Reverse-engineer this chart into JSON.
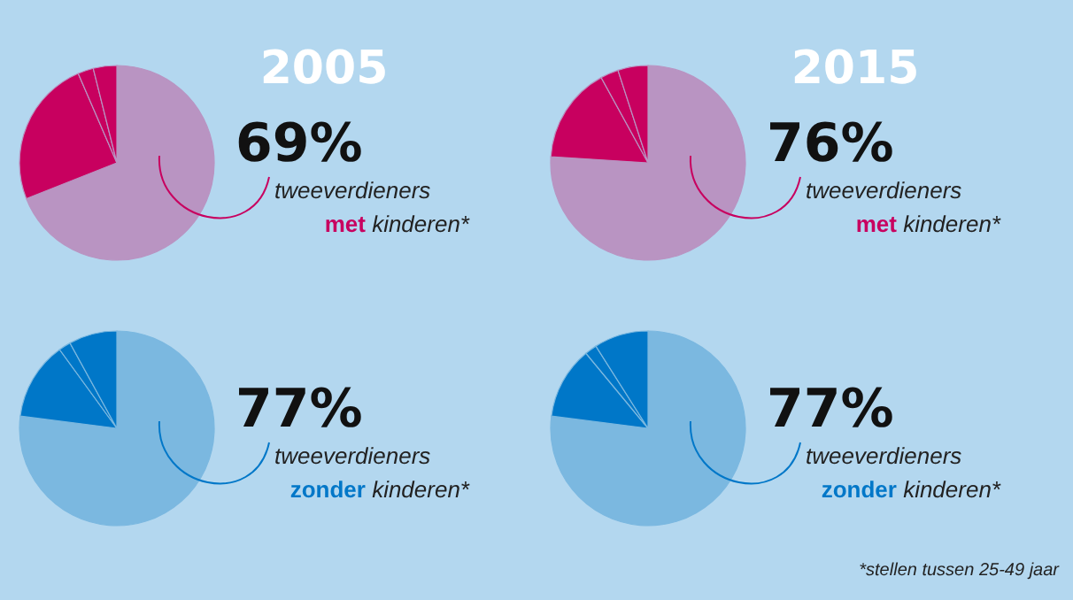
{
  "chart_data": [
    {
      "type": "pie",
      "title": "2005",
      "categories": [
        null,
        null,
        null,
        null
      ],
      "values": [
        69,
        24.5,
        2.6,
        3.9
      ],
      "colors": [
        "#b994c2",
        "#c8005f",
        "#c8005f",
        "#c8005f"
      ],
      "annotations": [
        "69%",
        "tweeverdieners",
        "met kinderen*"
      ]
    },
    {
      "type": "pie",
      "title": "2015",
      "categories": [
        null,
        null,
        null,
        null
      ],
      "values": [
        76,
        16,
        3,
        5
      ],
      "colors": [
        "#b994c2",
        "#c8005f",
        "#c8005f",
        "#c8005f"
      ],
      "annotations": [
        "76%",
        "tweeverdieners",
        "met kinderen*"
      ]
    },
    {
      "type": "pie",
      "categories": [
        null,
        null,
        null,
        null
      ],
      "values": [
        77,
        13,
        2,
        8
      ],
      "colors": [
        "#7bb8e0",
        "#0077c8",
        "#0077c8",
        "#0077c8"
      ],
      "annotations": [
        "77%",
        "tweeverdieners",
        "zonder kinderen*"
      ]
    },
    {
      "type": "pie",
      "categories": [
        null,
        null,
        null,
        null
      ],
      "values": [
        77,
        12,
        2,
        9
      ],
      "colors": [
        "#7bb8e0",
        "#0077c8",
        "#0077c8",
        "#0077c8"
      ],
      "annotations": [
        "77%",
        "tweeverdieners",
        "zonder kinderen*",
        "*stellen tussen 25-49 jaar"
      ]
    }
  ]
}
